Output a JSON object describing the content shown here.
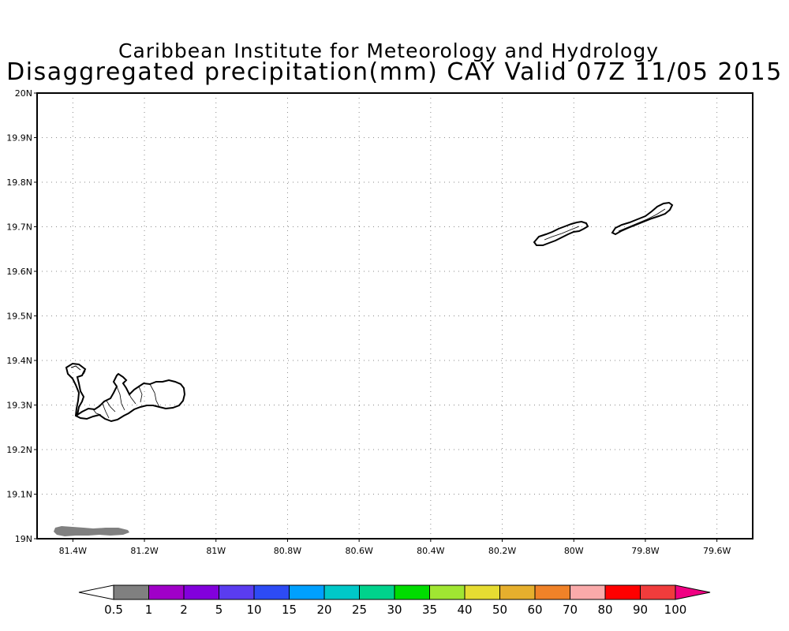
{
  "title": {
    "line1": "Caribbean Institute for Meteorology and Hydrology",
    "line2": "Disaggregated precipitation(mm) CAY Valid 07Z 11/05 2015"
  },
  "map": {
    "lon_range": [
      -81.5,
      -79.5
    ],
    "lat_range": [
      19.0,
      20.0
    ],
    "grid": "dotted",
    "lat_ticks": [
      "19N",
      "19.1N",
      "19.2N",
      "19.3N",
      "19.4N",
      "19.5N",
      "19.6N",
      "19.7N",
      "19.8N",
      "19.9N",
      "20N"
    ],
    "lat_values": [
      19.0,
      19.1,
      19.2,
      19.3,
      19.4,
      19.5,
      19.6,
      19.7,
      19.8,
      19.9,
      20.0
    ],
    "lon_ticks": [
      "81.4W",
      "81.2W",
      "81W",
      "80.8W",
      "80.6W",
      "80.4W",
      "80.2W",
      "80W",
      "79.8W",
      "79.6W"
    ],
    "lon_values": [
      -81.4,
      -81.2,
      -81.0,
      -80.8,
      -80.6,
      -80.4,
      -80.2,
      -80.0,
      -79.8,
      -79.6
    ],
    "islands": [
      "Grand Cayman",
      "Little Cayman",
      "Cayman Brac"
    ],
    "precip_area": {
      "value_range": "0.5-1",
      "color": "#808080"
    }
  },
  "colorbar": {
    "labels": [
      "0.5",
      "1",
      "2",
      "5",
      "10",
      "15",
      "20",
      "25",
      "30",
      "35",
      "40",
      "50",
      "60",
      "70",
      "80",
      "90",
      "100"
    ],
    "colors": [
      "#808080",
      "#a000c8",
      "#8200dc",
      "#5a3cf0",
      "#2d4bf5",
      "#00a0ff",
      "#00c8c8",
      "#00d28c",
      "#00dc00",
      "#a0e632",
      "#e6dc32",
      "#e6af2d",
      "#f08228",
      "#faaaaa",
      "#ff0000",
      "#f03c3c"
    ],
    "low_end_color": "#ffffff",
    "high_end_color": "#f00082"
  }
}
